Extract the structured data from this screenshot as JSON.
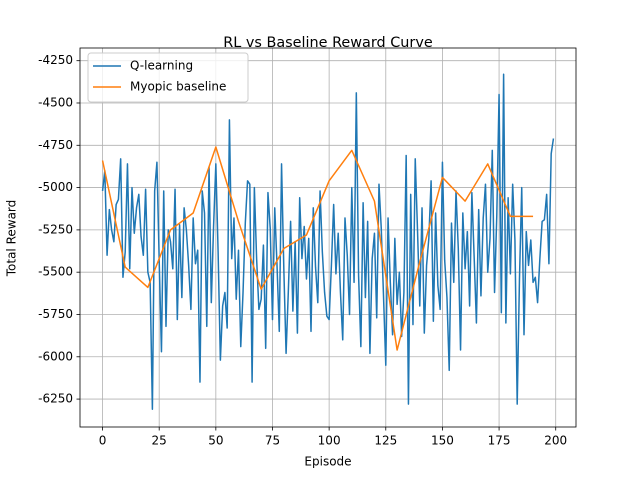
{
  "chart_data": {
    "type": "line",
    "title": "RL vs Baseline Reward Curve",
    "x_label": "Episode",
    "y_label": "Total Reward",
    "xlim": [
      -9.95,
      208.95
    ],
    "ylim": [
      -6415,
      -4175
    ],
    "xticks": [
      0,
      25,
      50,
      75,
      100,
      125,
      150,
      175,
      200
    ],
    "yticks": [
      -6250,
      -6000,
      -5750,
      -5500,
      -5250,
      -5000,
      -4750,
      -4500,
      -4250
    ],
    "grid": true,
    "legend": "upper left",
    "series": [
      {
        "name": "Q-learning",
        "color": "#1f77b4",
        "x": [
          0,
          1,
          2,
          3,
          4,
          5,
          6,
          7,
          8,
          9,
          10,
          11,
          12,
          13,
          14,
          15,
          16,
          17,
          18,
          19,
          20,
          21,
          22,
          23,
          24,
          25,
          26,
          27,
          28,
          29,
          30,
          31,
          32,
          33,
          34,
          35,
          36,
          37,
          38,
          39,
          40,
          41,
          42,
          43,
          44,
          45,
          46,
          47,
          48,
          49,
          50,
          51,
          52,
          53,
          54,
          55,
          56,
          57,
          58,
          59,
          60,
          61,
          62,
          63,
          64,
          65,
          66,
          67,
          68,
          69,
          70,
          71,
          72,
          73,
          74,
          75,
          76,
          77,
          78,
          79,
          80,
          81,
          82,
          83,
          84,
          85,
          86,
          87,
          88,
          89,
          90,
          91,
          92,
          93,
          94,
          95,
          96,
          97,
          98,
          99,
          100,
          101,
          102,
          103,
          104,
          105,
          106,
          107,
          108,
          109,
          110,
          111,
          112,
          113,
          114,
          115,
          116,
          117,
          118,
          119,
          120,
          121,
          122,
          123,
          124,
          125,
          126,
          127,
          128,
          129,
          130,
          131,
          132,
          133,
          134,
          135,
          136,
          137,
          138,
          139,
          140,
          141,
          142,
          143,
          144,
          145,
          146,
          147,
          148,
          149,
          150,
          151,
          152,
          153,
          154,
          155,
          156,
          157,
          158,
          159,
          160,
          161,
          162,
          163,
          164,
          165,
          166,
          167,
          168,
          169,
          170,
          171,
          172,
          173,
          174,
          175,
          176,
          177,
          178,
          179,
          180,
          181,
          182,
          183,
          184,
          185,
          186,
          187,
          188,
          189,
          190,
          191,
          192,
          193,
          194,
          195,
          196,
          197,
          198,
          199
        ],
        "values": [
          -5020,
          -4900,
          -5400,
          -5130,
          -5250,
          -5320,
          -5100,
          -5070,
          -4830,
          -5530,
          -5380,
          -4860,
          -5480,
          -5000,
          -5270,
          -5120,
          -5040,
          -5290,
          -5400,
          -5010,
          -5500,
          -5560,
          -6310,
          -5020,
          -4850,
          -5430,
          -5970,
          -5020,
          -5820,
          -5250,
          -5320,
          -5480,
          -5010,
          -5780,
          -5220,
          -5650,
          -5120,
          -5250,
          -5460,
          -5720,
          -5180,
          -5450,
          -5370,
          -6150,
          -5020,
          -5150,
          -5820,
          -4880,
          -5680,
          -5230,
          -4860,
          -5380,
          -6020,
          -5700,
          -5620,
          -5830,
          -4600,
          -5420,
          -5180,
          -5660,
          -5370,
          -5940,
          -5620,
          -5210,
          -4960,
          -4980,
          -6150,
          -5000,
          -5420,
          -5720,
          -5660,
          -5340,
          -5950,
          -5030,
          -5240,
          -5780,
          -5120,
          -5460,
          -5850,
          -4860,
          -5480,
          -5980,
          -5610,
          -5200,
          -5730,
          -5320,
          -5860,
          -5060,
          -5420,
          -5230,
          -5540,
          -5300,
          -5850,
          -5120,
          -5470,
          -5680,
          -5020,
          -5380,
          -5620,
          -5760,
          -5780,
          -5460,
          -5100,
          -5510,
          -5270,
          -5620,
          -5900,
          -5180,
          -5400,
          -5750,
          -5000,
          -5560,
          -4440,
          -5520,
          -5940,
          -5090,
          -5650,
          -5200,
          -5980,
          -5420,
          -5270,
          -5770,
          -4980,
          -5240,
          -5640,
          -6050,
          -5180,
          -5560,
          -5870,
          -5300,
          -5690,
          -5500,
          -5880,
          -5620,
          -4810,
          -6280,
          -5040,
          -5810,
          -4830,
          -5250,
          -5700,
          -5120,
          -5860,
          -5460,
          -5300,
          -4960,
          -5790,
          -5150,
          -5580,
          -5720,
          -4850,
          -5430,
          -5650,
          -6080,
          -5210,
          -5560,
          -5020,
          -5360,
          -5960,
          -5150,
          -5480,
          -5260,
          -5700,
          -5030,
          -5410,
          -5800,
          -5130,
          -5640,
          -5180,
          -4980,
          -5500,
          -5300,
          -4780,
          -5620,
          -5160,
          -4450,
          -5740,
          -4330,
          -5800,
          -5060,
          -5510,
          -4980,
          -5310,
          -6280,
          -5540,
          -5000,
          -5870,
          -5260,
          -5460,
          -5310,
          -5560,
          -5530,
          -5680,
          -5420,
          -5200,
          -5190,
          -5040,
          -5450,
          -4800,
          -4710
        ]
      },
      {
        "name": "Myopic baseline",
        "color": "#ff7f0e",
        "x": [
          0,
          10,
          20,
          30,
          40,
          50,
          60,
          70,
          80,
          90,
          100,
          110,
          120,
          130,
          140,
          150,
          160,
          170,
          180,
          190
        ],
        "values": [
          -4840,
          -5470,
          -5590,
          -5250,
          -5150,
          -4760,
          -5200,
          -5600,
          -5360,
          -5280,
          -4960,
          -4780,
          -5080,
          -5960,
          -5440,
          -4940,
          -5080,
          -4860,
          -5170,
          -5170
        ]
      }
    ]
  }
}
